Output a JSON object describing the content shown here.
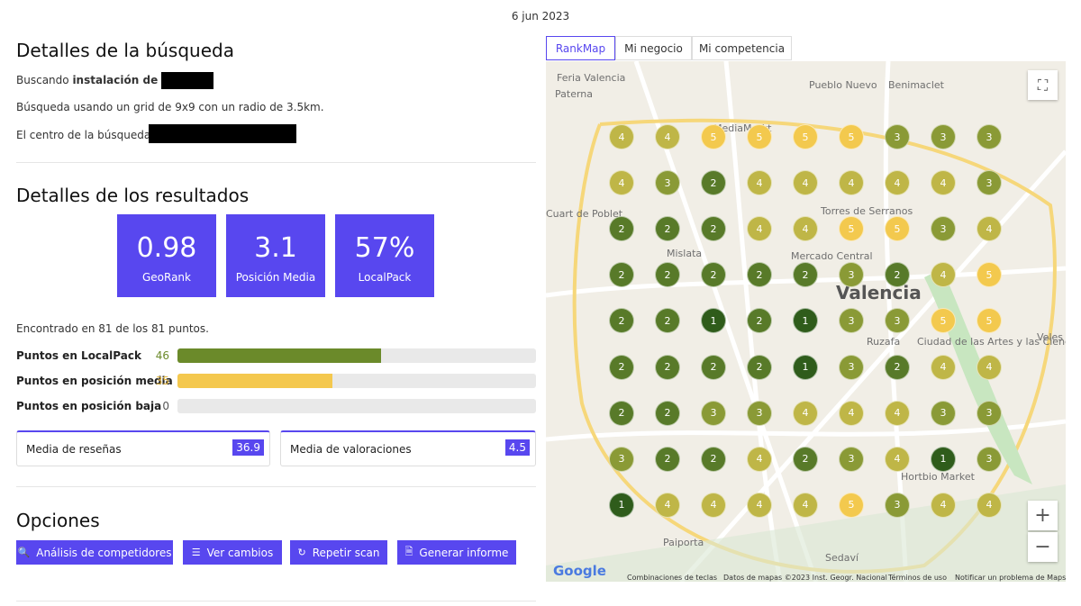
{
  "date": "6 jun 2023",
  "search": {
    "title": "Detalles de la búsqueda",
    "prefix": "Buscando",
    "term": "instalación de",
    "grid_text": "Búsqueda usando un grid de 9x9 con un radio de 3.5km.",
    "center_text": "El centro de la búsqueda es:"
  },
  "results": {
    "title": "Detalles de los resultados",
    "metrics": [
      {
        "value": "0.98",
        "label": "GeoRank"
      },
      {
        "value": "3.1",
        "label": "Posición Media"
      },
      {
        "value": "57%",
        "label": "LocalPack"
      }
    ],
    "found_text": "Encontrado en 81 de los 81 puntos.",
    "bars": [
      {
        "label": "Puntos en LocalPack",
        "count": 46,
        "color": "#6b8a2a",
        "text_color": "#6b8a2a"
      },
      {
        "label": "Puntos en posición media",
        "count": 35,
        "color": "#f4c84e",
        "text_color": "#e3b73f"
      },
      {
        "label": "Puntos en posición baja",
        "count": 0,
        "color": "#d9534f",
        "text_color": "#555555"
      }
    ],
    "reviews": [
      {
        "label": "Media de reseñas",
        "value": "36.9"
      },
      {
        "label": "Media de valoraciones",
        "value": "4.5"
      }
    ]
  },
  "options": {
    "title": "Opciones",
    "buttons": [
      "Análisis de competidores",
      "Ver cambios",
      "Repetir scan",
      "Generar informe"
    ]
  },
  "tabs": [
    "RankMap",
    "Mi negocio",
    "Mi competencia"
  ],
  "grid": {
    "rank_colors": {
      "1": "#2f5c1b",
      "2": "#587a29",
      "3": "#8a9a36",
      "4": "#bfb647",
      "5": "#f3c94e"
    },
    "rows": [
      [
        4,
        4,
        5,
        5,
        5,
        5,
        3,
        3,
        3
      ],
      [
        4,
        3,
        2,
        4,
        4,
        4,
        4,
        4,
        3
      ],
      [
        2,
        2,
        2,
        4,
        4,
        5,
        5,
        3,
        4
      ],
      [
        2,
        2,
        2,
        2,
        2,
        3,
        2,
        4,
        5
      ],
      [
        2,
        2,
        1,
        2,
        1,
        3,
        3,
        5,
        5
      ],
      [
        2,
        2,
        2,
        2,
        1,
        3,
        2,
        4,
        4
      ],
      [
        2,
        2,
        3,
        3,
        4,
        4,
        4,
        3,
        3
      ],
      [
        3,
        2,
        2,
        4,
        2,
        3,
        4,
        1,
        3
      ],
      [
        1,
        4,
        4,
        4,
        4,
        5,
        3,
        4,
        4
      ]
    ]
  },
  "map": {
    "labels": [
      "Valencia",
      "Pueblo Nuevo",
      "Benimaclet",
      "Paterna",
      "Feria Valencia",
      "MediaMarkt",
      "Torres de Serranos",
      "Mislata",
      "Mercado Central",
      "Ruzafa",
      "Ciudad de las Artes y las Ciencias",
      "Paiporta",
      "Sedaví",
      "Hortbio Market",
      "Veles",
      "Cuart de Poblet"
    ],
    "google": "Google",
    "footer": [
      "Combinaciones de teclas",
      "Datos de mapas ©2023 Inst. Geogr. Nacional",
      "Términos de uso",
      "Notificar un problema de Maps"
    ]
  }
}
